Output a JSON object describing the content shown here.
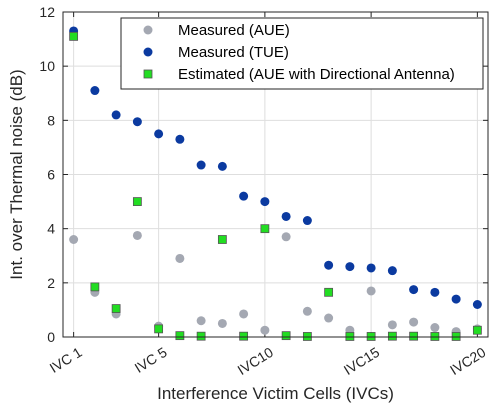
{
  "chart_data": {
    "type": "scatter",
    "title": "",
    "xlabel": "Interference Victim Cells (IVCs)",
    "ylabel": "Int. over Thermal noise (dB)",
    "xlim": [
      0.5,
      20.5
    ],
    "ylim": [
      0,
      12
    ],
    "x": [
      1,
      2,
      3,
      4,
      5,
      6,
      7,
      8,
      9,
      10,
      11,
      12,
      13,
      14,
      15,
      16,
      17,
      18,
      19,
      20
    ],
    "x_tick_values": [
      1,
      5,
      10,
      15,
      20
    ],
    "x_tick_labels": [
      "IVC 1",
      "IVC 5",
      "IVC10",
      "IVC15",
      "IVC20"
    ],
    "y_ticks": [
      0,
      2,
      4,
      6,
      8,
      10,
      12
    ],
    "grid": true,
    "legend_position": "top-right",
    "series": [
      {
        "name": "Measured (AUE)",
        "marker": "circle",
        "color": "#a4a8b2",
        "values": [
          3.6,
          1.65,
          0.85,
          3.75,
          0.4,
          2.9,
          0.6,
          0.5,
          0.85,
          0.25,
          3.7,
          0.95,
          0.7,
          0.25,
          1.7,
          0.45,
          0.55,
          0.35,
          0.2,
          0.3
        ]
      },
      {
        "name": "Measured (TUE)",
        "marker": "circle",
        "color": "#0b3aa0",
        "values": [
          11.3,
          9.1,
          8.2,
          7.95,
          7.5,
          7.3,
          6.35,
          6.3,
          5.2,
          5.0,
          4.45,
          4.3,
          2.65,
          2.6,
          2.55,
          2.45,
          1.75,
          1.65,
          1.4,
          1.2
        ]
      },
      {
        "name": "Estimated (AUE with Directional Antenna)",
        "marker": "square",
        "color": "#22dd22",
        "edge_color": "#555555",
        "values": [
          11.1,
          1.85,
          1.05,
          5.0,
          0.3,
          0.05,
          0.03,
          3.6,
          0.03,
          4.0,
          0.05,
          0.02,
          1.65,
          0.02,
          0.02,
          0.03,
          0.03,
          0.02,
          0.02,
          0.25
        ]
      }
    ]
  }
}
